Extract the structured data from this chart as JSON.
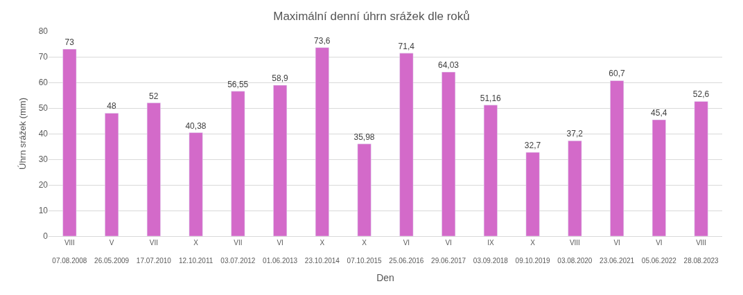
{
  "chart_data": {
    "type": "bar",
    "title": "Maximální denní úhrn srážek dle roků",
    "xlabel": "Den",
    "ylabel": "Úhrn srážek (mm)",
    "categories": [
      "VIII\n07.08.2008",
      "V\n26.05.2009",
      "VII\n17.07.2010",
      "X\n12.10.2011",
      "VII\n03.07.2012",
      "VI\n01.06.2013",
      "X\n23.10.2014",
      "X\n07.10.2015",
      "VI\n25.06.2016",
      "VI\n29.06.2017",
      "IX\n03.09.2018",
      "X\n09.10.2019",
      "VIII\n03.08.2020",
      "VI\n23.06.2021",
      "VI\n05.06.2022",
      "VIII\n28.08.2023"
    ],
    "values": [
      73,
      48,
      52,
      40.38,
      56.55,
      58.9,
      73.6,
      35.98,
      71.4,
      64.03,
      51.16,
      32.7,
      37.2,
      60.7,
      45.4,
      52.6
    ],
    "value_labels": [
      "73",
      "48",
      "52",
      "40,38",
      "56,55",
      "58,9",
      "73,6",
      "35,98",
      "71,4",
      "64,03",
      "51,16",
      "32,7",
      "37,2",
      "60,7",
      "45,4",
      "52,6"
    ],
    "color": "#d36ac9",
    "ylim": [
      0,
      80
    ],
    "yticks": [
      0,
      10,
      20,
      30,
      40,
      50,
      60,
      70,
      80
    ],
    "grid": "y"
  }
}
